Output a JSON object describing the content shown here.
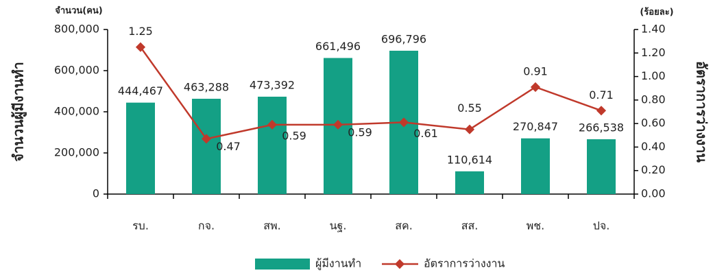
{
  "chart_data": {
    "type": "bar_line",
    "y_unit": "จำนวน(คน)",
    "y2_unit": "(ร้อยละ)",
    "ylabel": "จำนวนผู้มีงานทำ",
    "y2label": "อัตราการว่างงาน",
    "categories": [
      "รบ.",
      "กจ.",
      "สพ.",
      "นฐ.",
      "สค.",
      "สส.",
      "พช.",
      "ปจ."
    ],
    "series": [
      {
        "name": "ผู้มีงานทำ",
        "type": "bar",
        "color": "#14a085",
        "values": [
          444467,
          463288,
          473392,
          661496,
          696796,
          110614,
          270847,
          266538
        ],
        "value_labels": [
          "444,467",
          "463,288",
          "473,392",
          "661,496",
          "696,796",
          "110,614",
          "270,847",
          "266,538"
        ]
      },
      {
        "name": "อัตราการว่างงาน",
        "type": "line",
        "axis": "y2",
        "color": "#c0392b",
        "values": [
          1.25,
          0.47,
          0.59,
          0.59,
          0.61,
          0.55,
          0.91,
          0.71
        ]
      }
    ],
    "ylim": [
      0,
      800000
    ],
    "yticks": [
      0,
      {
        "value": 200000,
        "label": "200,000"
      },
      {
        "value": 400000,
        "label": "400,000"
      },
      {
        "value": 600000,
        "label": "600,000"
      },
      {
        "value": 800000,
        "label": "800,000"
      }
    ],
    "y2lim": [
      0,
      1.4
    ],
    "y2ticks": [
      {
        "value": 0,
        "label": "0.00"
      },
      {
        "value": 0.2,
        "label": "0.20"
      },
      {
        "value": 0.4,
        "label": "0.40"
      },
      {
        "value": 0.6,
        "label": "0.60"
      },
      {
        "value": 0.8,
        "label": "0.80"
      },
      {
        "value": 1.0,
        "label": "1.00"
      },
      {
        "value": 1.2,
        "label": "1.20"
      },
      {
        "value": 1.4,
        "label": "1.40"
      }
    ],
    "legend": "bottom"
  }
}
